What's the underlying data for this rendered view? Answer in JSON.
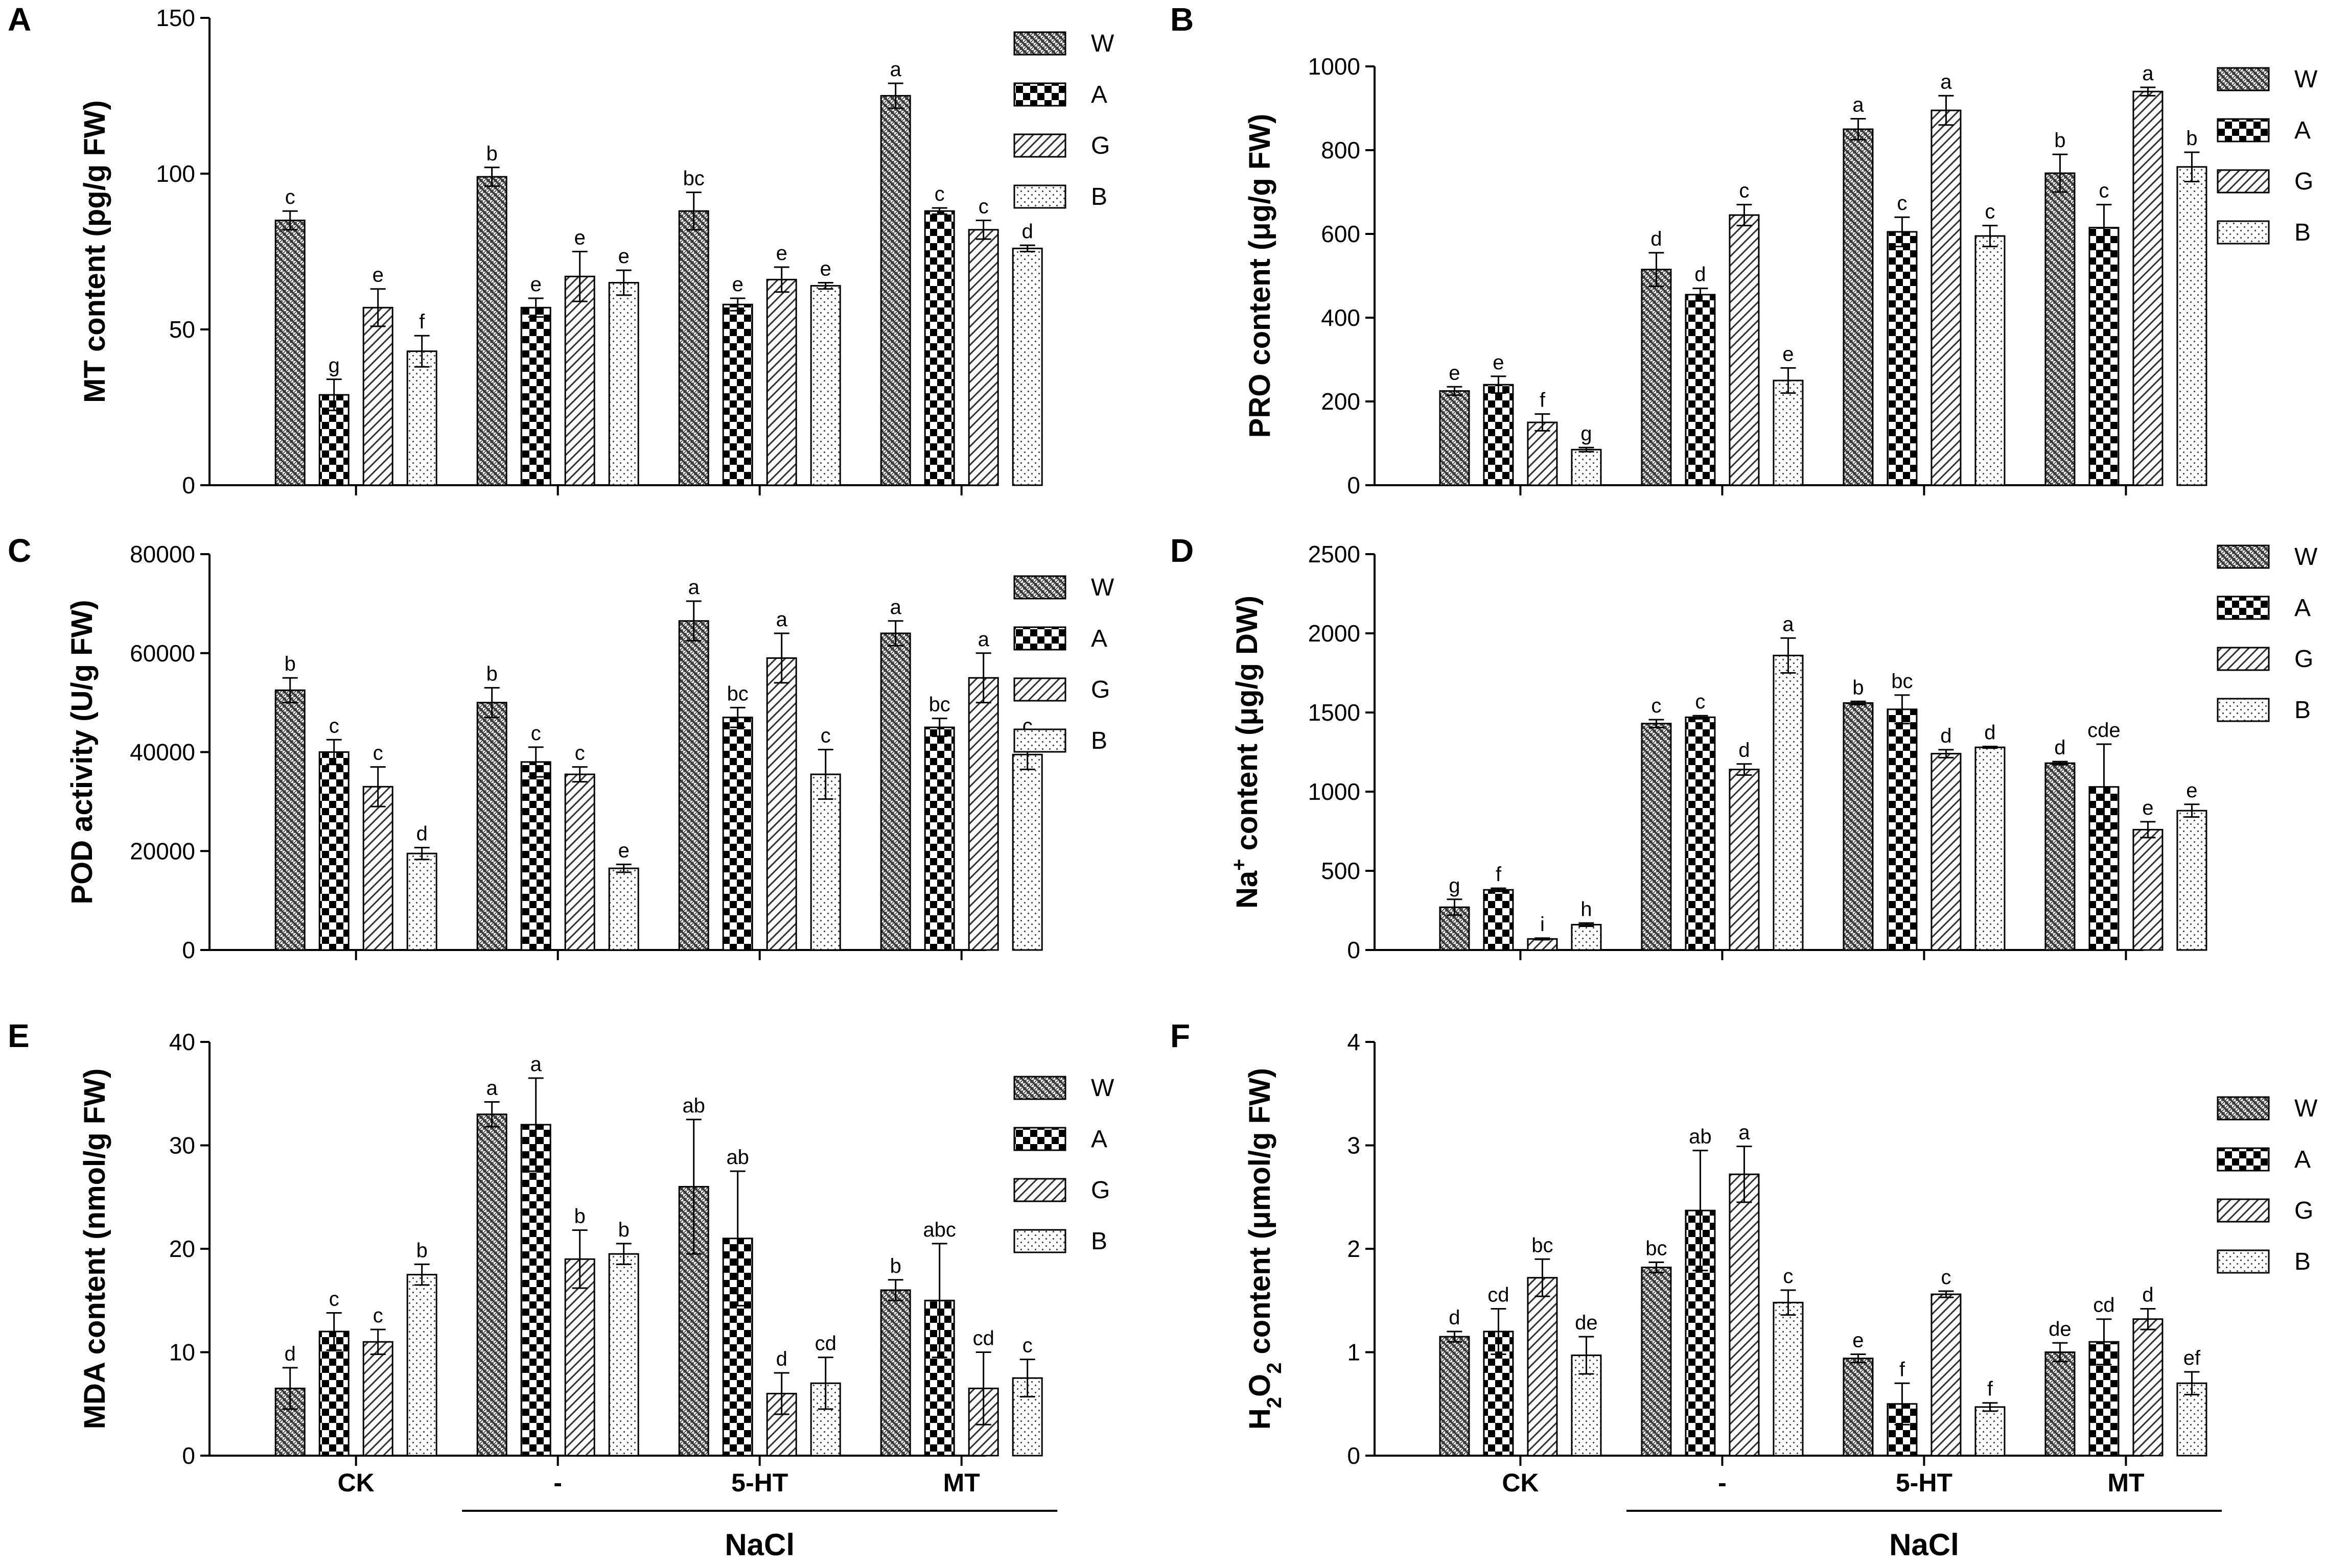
{
  "figure": {
    "groups": [
      "CK",
      "-",
      "5-HT",
      "MT"
    ],
    "nacl_label": "NaCl",
    "legend": [
      "W",
      "A",
      "G",
      "B"
    ],
    "patterns": {
      "W": "crosshatch",
      "A": "checker",
      "G": "diagonal",
      "B": "dotted"
    },
    "colors": {
      "bar_fill": "#ffffff",
      "ink": "#000000",
      "hatch": "#333333"
    }
  },
  "chart_data": [
    {
      "type": "bar",
      "panel": "A",
      "ylabel": "MT content (pg/g FW)",
      "ylabel_parts": [
        {
          "t": "MT content (pg/g FW)"
        }
      ],
      "ylim": [
        0,
        150
      ],
      "yticks": [
        0,
        50,
        100,
        150
      ],
      "series": [
        {
          "name": "W",
          "values": [
            85,
            99,
            88,
            125
          ],
          "errors": [
            3,
            3,
            6,
            4
          ],
          "letters": [
            "c",
            "b",
            "bc",
            "a"
          ]
        },
        {
          "name": "A",
          "values": [
            29,
            57,
            58,
            88
          ],
          "errors": [
            5,
            3,
            2,
            1
          ],
          "letters": [
            "g",
            "e",
            "e",
            "c"
          ]
        },
        {
          "name": "G",
          "values": [
            57,
            67,
            66,
            82
          ],
          "errors": [
            6,
            8,
            4,
            3
          ],
          "letters": [
            "e",
            "e",
            "e",
            "c"
          ]
        },
        {
          "name": "B",
          "values": [
            43,
            65,
            64,
            76
          ],
          "errors": [
            5,
            4,
            1,
            1
          ],
          "letters": [
            "f",
            "e",
            "e",
            "d"
          ]
        }
      ]
    },
    {
      "type": "bar",
      "panel": "B",
      "ylabel": "PRO content (μg/g FW)",
      "ylabel_parts": [
        {
          "t": "PRO content (μg/g FW)"
        }
      ],
      "ylim": [
        0,
        1000
      ],
      "yticks": [
        0,
        200,
        400,
        600,
        800,
        1000
      ],
      "series": [
        {
          "name": "W",
          "values": [
            225,
            515,
            850,
            745
          ],
          "errors": [
            10,
            40,
            25,
            45
          ],
          "letters": [
            "e",
            "d",
            "a",
            "b"
          ]
        },
        {
          "name": "A",
          "values": [
            240,
            455,
            605,
            615
          ],
          "errors": [
            20,
            15,
            35,
            55
          ],
          "letters": [
            "e",
            "d",
            "c",
            "c"
          ]
        },
        {
          "name": "G",
          "values": [
            150,
            645,
            895,
            940
          ],
          "errors": [
            20,
            25,
            35,
            10
          ],
          "letters": [
            "f",
            "c",
            "a",
            "a"
          ]
        },
        {
          "name": "B",
          "values": [
            85,
            250,
            595,
            760
          ],
          "errors": [
            5,
            30,
            25,
            35
          ],
          "letters": [
            "g",
            "e",
            "c",
            "b"
          ]
        }
      ]
    },
    {
      "type": "bar",
      "panel": "C",
      "ylabel": "POD activity (U/g FW)",
      "ylabel_parts": [
        {
          "t": "POD activity (U/g FW)"
        }
      ],
      "ylim": [
        0,
        80000
      ],
      "yticks": [
        0,
        20000,
        40000,
        60000,
        80000
      ],
      "series": [
        {
          "name": "W",
          "values": [
            52500,
            50000,
            66500,
            64000
          ],
          "errors": [
            2500,
            3000,
            4000,
            2500
          ],
          "letters": [
            "b",
            "b",
            "a",
            "a"
          ]
        },
        {
          "name": "A",
          "values": [
            40000,
            38000,
            47000,
            45000
          ],
          "errors": [
            2500,
            3000,
            2000,
            1800
          ],
          "letters": [
            "c",
            "c",
            "bc",
            "bc"
          ]
        },
        {
          "name": "G",
          "values": [
            33000,
            35500,
            59000,
            55000
          ],
          "errors": [
            4000,
            1500,
            5000,
            5000
          ],
          "letters": [
            "c",
            "c",
            "a",
            "a"
          ]
        },
        {
          "name": "B",
          "values": [
            19500,
            16500,
            35500,
            39500
          ],
          "errors": [
            1200,
            800,
            5000,
            3000
          ],
          "letters": [
            "d",
            "e",
            "c",
            "c"
          ]
        }
      ]
    },
    {
      "type": "bar",
      "panel": "D",
      "ylabel": "Na+ content (μg/g DW)",
      "ylabel_parts": [
        {
          "t": "Na"
        },
        {
          "t": "+",
          "sup": true
        },
        {
          "t": " content (μg/g DW)"
        }
      ],
      "ylim": [
        0,
        2500
      ],
      "yticks": [
        0,
        500,
        1000,
        1500,
        2000,
        2500
      ],
      "series": [
        {
          "name": "W",
          "values": [
            270,
            1430,
            1560,
            1180
          ],
          "errors": [
            50,
            25,
            10,
            10
          ],
          "letters": [
            "g",
            "c",
            "b",
            "d"
          ]
        },
        {
          "name": "A",
          "values": [
            380,
            1470,
            1520,
            1030
          ],
          "errors": [
            10,
            10,
            90,
            270
          ],
          "letters": [
            "f",
            "c",
            "bc",
            "cde"
          ]
        },
        {
          "name": "G",
          "values": [
            70,
            1140,
            1240,
            760
          ],
          "errors": [
            5,
            35,
            25,
            50
          ],
          "letters": [
            "i",
            "d",
            "d",
            "e"
          ]
        },
        {
          "name": "B",
          "values": [
            160,
            1860,
            1280,
            880
          ],
          "errors": [
            10,
            110,
            5,
            40
          ],
          "letters": [
            "h",
            "a",
            "d",
            "e"
          ]
        }
      ]
    },
    {
      "type": "bar",
      "panel": "E",
      "ylabel": "MDA content (nmol/g FW)",
      "ylabel_parts": [
        {
          "t": "MDA content (nmol/g FW)"
        }
      ],
      "ylim": [
        0,
        40
      ],
      "yticks": [
        0,
        10,
        20,
        30,
        40
      ],
      "series": [
        {
          "name": "W",
          "values": [
            6.5,
            33,
            26,
            16
          ],
          "errors": [
            2,
            1.2,
            6.5,
            1
          ],
          "letters": [
            "d",
            "a",
            "ab",
            "b"
          ]
        },
        {
          "name": "A",
          "values": [
            12,
            32,
            21,
            15
          ],
          "errors": [
            1.8,
            4.5,
            6.5,
            5.5
          ],
          "letters": [
            "c",
            "a",
            "ab",
            "abc"
          ]
        },
        {
          "name": "G",
          "values": [
            11,
            19,
            6,
            6.5
          ],
          "errors": [
            1.2,
            2.8,
            2,
            3.5
          ],
          "letters": [
            "c",
            "b",
            "d",
            "cd"
          ]
        },
        {
          "name": "B",
          "values": [
            17.5,
            19.5,
            7,
            7.5
          ],
          "errors": [
            1,
            1,
            2.5,
            1.8
          ],
          "letters": [
            "b",
            "b",
            "cd",
            "c"
          ]
        }
      ]
    },
    {
      "type": "bar",
      "panel": "F",
      "ylabel": "H2O2 content (μmol/g FW)",
      "ylabel_parts": [
        {
          "t": "H"
        },
        {
          "t": "2",
          "sub": true
        },
        {
          "t": "O"
        },
        {
          "t": "2",
          "sub": true
        },
        {
          "t": " content (μmol/g FW)"
        }
      ],
      "ylim": [
        0,
        4
      ],
      "yticks": [
        0,
        1,
        2,
        3,
        4
      ],
      "series": [
        {
          "name": "W",
          "values": [
            1.15,
            1.82,
            0.94,
            1.0
          ],
          "errors": [
            0.05,
            0.05,
            0.04,
            0.09
          ],
          "letters": [
            "d",
            "bc",
            "e",
            "de"
          ]
        },
        {
          "name": "A",
          "values": [
            1.2,
            2.37,
            0.5,
            1.1
          ],
          "errors": [
            0.22,
            0.58,
            0.2,
            0.22
          ],
          "letters": [
            "cd",
            "ab",
            "f",
            "cd"
          ]
        },
        {
          "name": "G",
          "values": [
            1.72,
            2.72,
            1.56,
            1.32
          ],
          "errors": [
            0.18,
            0.27,
            0.03,
            0.1
          ],
          "letters": [
            "bc",
            "a",
            "c",
            "d"
          ]
        },
        {
          "name": "B",
          "values": [
            0.97,
            1.48,
            0.47,
            0.7
          ],
          "errors": [
            0.18,
            0.12,
            0.04,
            0.11
          ],
          "letters": [
            "de",
            "c",
            "f",
            "ef"
          ]
        }
      ]
    }
  ]
}
